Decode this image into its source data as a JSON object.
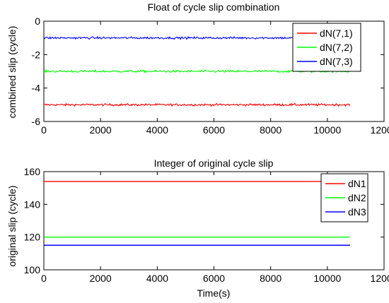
{
  "chart_data": [
    {
      "type": "line",
      "title": "Float of cycle slip combination",
      "xlabel": "",
      "ylabel": "combined slip (cycle)",
      "xlim": [
        0,
        12000
      ],
      "ylim": [
        -6,
        0
      ],
      "xticks": [
        "0",
        "2000",
        "4000",
        "6000",
        "8000",
        "10000",
        "12000"
      ],
      "yticks": [
        "-6",
        "-4",
        "-2",
        "0"
      ],
      "legend_position": "top-right",
      "series": [
        {
          "name": "dN(7,1)",
          "color": "#ff0000",
          "x_range": [
            0,
            10800
          ],
          "level": -5,
          "noise": 0.06
        },
        {
          "name": "dN(7,2)",
          "color": "#00ff00",
          "x_range": [
            0,
            10800
          ],
          "level": -3,
          "noise": 0.06
        },
        {
          "name": "dN(7,3)",
          "color": "#0000ff",
          "x_range": [
            0,
            10800
          ],
          "level": -1,
          "noise": 0.06
        }
      ]
    },
    {
      "type": "line",
      "title": "Integer of original cycle slip",
      "xlabel": "Time(s)",
      "ylabel": "original slip (cycle)",
      "xlim": [
        0,
        12000
      ],
      "ylim": [
        100,
        160
      ],
      "xticks": [
        "0",
        "2000",
        "4000",
        "6000",
        "8000",
        "10000",
        "12000"
      ],
      "yticks": [
        "100",
        "120",
        "140",
        "160"
      ],
      "legend_position": "top-right",
      "series": [
        {
          "name": "dN1",
          "color": "#ff0000",
          "x_range": [
            0,
            10800
          ],
          "level": 154,
          "noise": 0
        },
        {
          "name": "dN2",
          "color": "#00ff00",
          "x_range": [
            0,
            10800
          ],
          "level": 120,
          "noise": 0
        },
        {
          "name": "dN3",
          "color": "#0000ff",
          "x_range": [
            0,
            10800
          ],
          "level": 115,
          "noise": 0
        }
      ]
    }
  ]
}
